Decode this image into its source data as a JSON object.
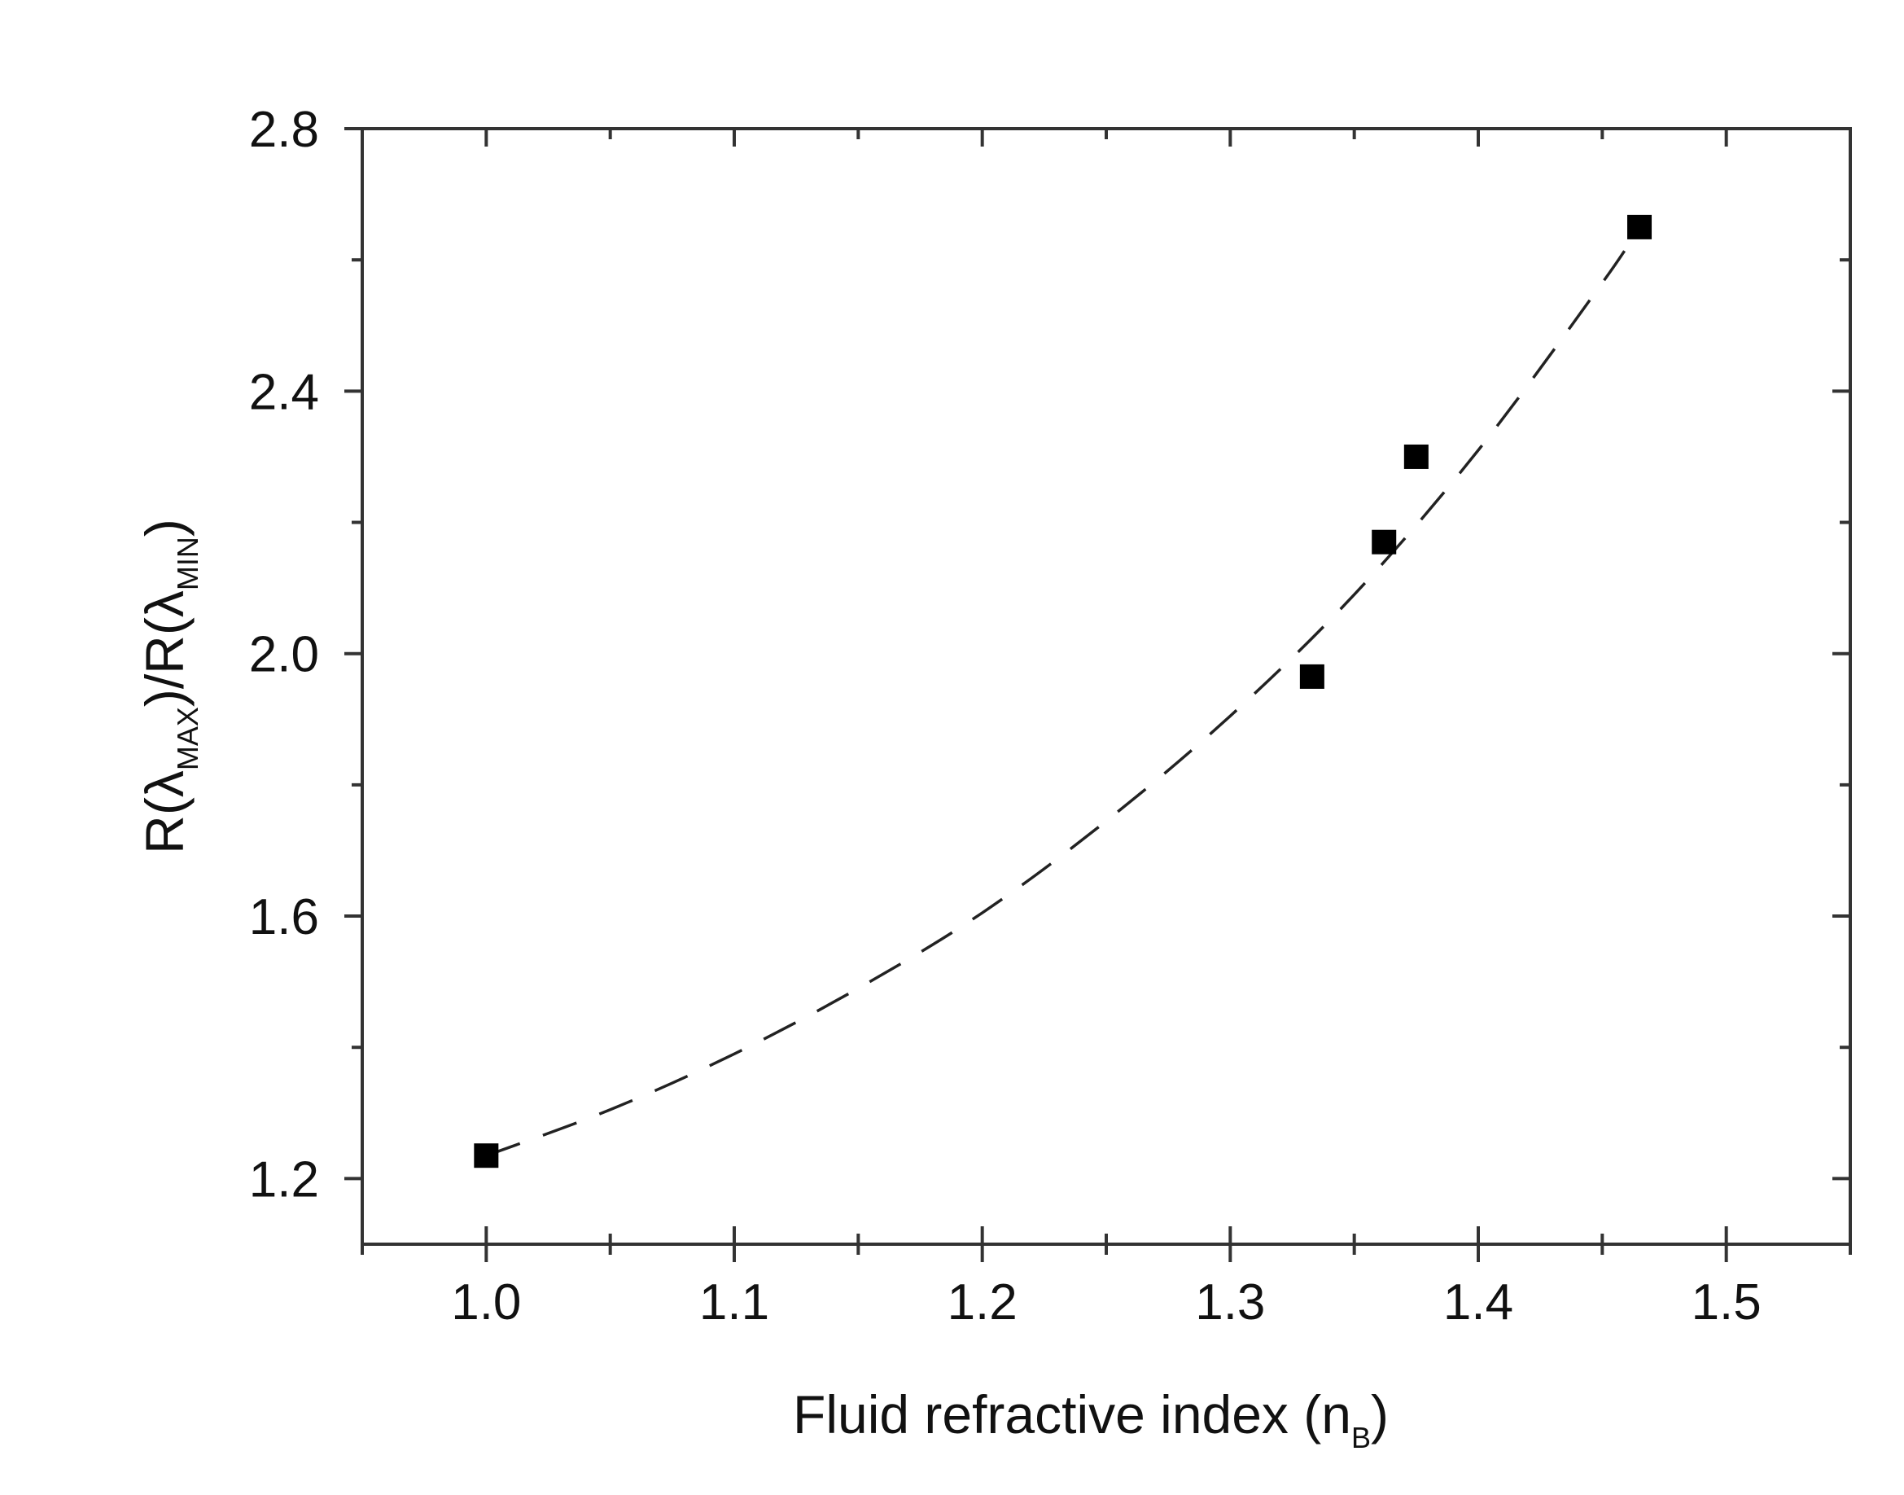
{
  "chart_data": {
    "type": "scatter",
    "xlabel": {
      "main": "Fluid refractive index (n",
      "sub": "B",
      "close": ")"
    },
    "ylabel": {
      "part1": "R(λ",
      "sub1": "MAX",
      "part2": ")/R(λ",
      "sub2": "MIN",
      "part3": ")"
    },
    "xlim": [
      0.95,
      1.55
    ],
    "ylim": [
      1.1,
      2.8
    ],
    "xticks": [
      1.0,
      1.1,
      1.2,
      1.3,
      1.4,
      1.5
    ],
    "xtick_labels": [
      "1.0",
      "1.1",
      "1.2",
      "1.3",
      "1.4",
      "1.5"
    ],
    "xminor": [
      0.95,
      1.05,
      1.15,
      1.25,
      1.35,
      1.45,
      1.55
    ],
    "yticks": [
      1.2,
      1.6,
      2.0,
      2.4,
      2.8
    ],
    "ytick_labels": [
      "1.2",
      "1.6",
      "2.0",
      "2.4",
      "2.8"
    ],
    "yminor": [
      1.4,
      1.8,
      2.2,
      2.6
    ],
    "grid": false,
    "series": [
      {
        "marker": "square",
        "x": [
          1.0,
          1.333,
          1.362,
          1.375,
          1.465
        ],
        "y": [
          1.235,
          1.965,
          2.17,
          2.3,
          2.65
        ]
      }
    ],
    "fit_curve": {
      "style": "dashed",
      "x": [
        1.0,
        1.05,
        1.1,
        1.15,
        1.2,
        1.25,
        1.3,
        1.35,
        1.4,
        1.45,
        1.465
      ],
      "y": [
        1.235,
        1.305,
        1.39,
        1.49,
        1.605,
        1.745,
        1.905,
        2.09,
        2.31,
        2.565,
        2.65
      ]
    }
  }
}
